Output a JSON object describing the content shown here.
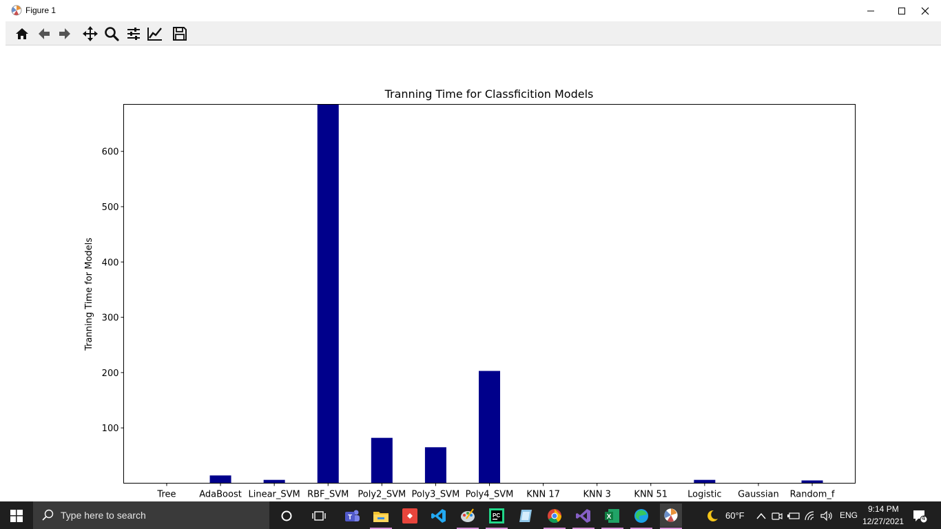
{
  "window": {
    "title": "Figure 1"
  },
  "toolbar": {
    "buttons": [
      "home-icon",
      "back-arrow-icon",
      "forward-arrow-icon",
      "pan-icon",
      "zoom-icon",
      "configure-subplots-icon",
      "edit-axis-icon",
      "save-icon"
    ]
  },
  "colors": {
    "bar": "#00008b",
    "taskbar": "#1f1f1f",
    "toolbar": "#f0f0f0"
  },
  "chart_data": {
    "type": "bar",
    "title": "Tranning Time for Classficition Models",
    "xlabel": "",
    "ylabel": "Tranning Time for Models",
    "categories": [
      "Tree",
      "AdaBoost",
      "Linear_SVM",
      "RBF_SVM",
      "Poly2_SVM",
      "Poly3_SVM",
      "Poly4_SVM",
      "KNN 17",
      "KNN 3",
      "KNN 51",
      "Logistic",
      "Gaussian",
      "Random_f"
    ],
    "values": [
      0.3,
      14,
      6,
      685,
      82,
      65,
      203,
      0.3,
      0.3,
      0.3,
      6,
      0.3,
      5
    ],
    "yticks": [
      100,
      200,
      300,
      400,
      500,
      600
    ],
    "ylim": [
      0,
      685
    ],
    "grid": false
  },
  "taskbar": {
    "search_placeholder": "Type here to search",
    "apps": [
      "cortana-icon",
      "task-view-icon",
      "teams-icon",
      "file-explorer-icon",
      "git-icon",
      "vscode-icon",
      "paint-icon",
      "pycharm-icon",
      "notepad-icon",
      "chrome-icon",
      "visual-studio-icon",
      "excel-icon",
      "edge-icon",
      "python-figure-icon"
    ],
    "weather": "60°F",
    "language": "ENG",
    "time": "9:14 PM",
    "date": "12/27/2021",
    "notifications": "4"
  }
}
